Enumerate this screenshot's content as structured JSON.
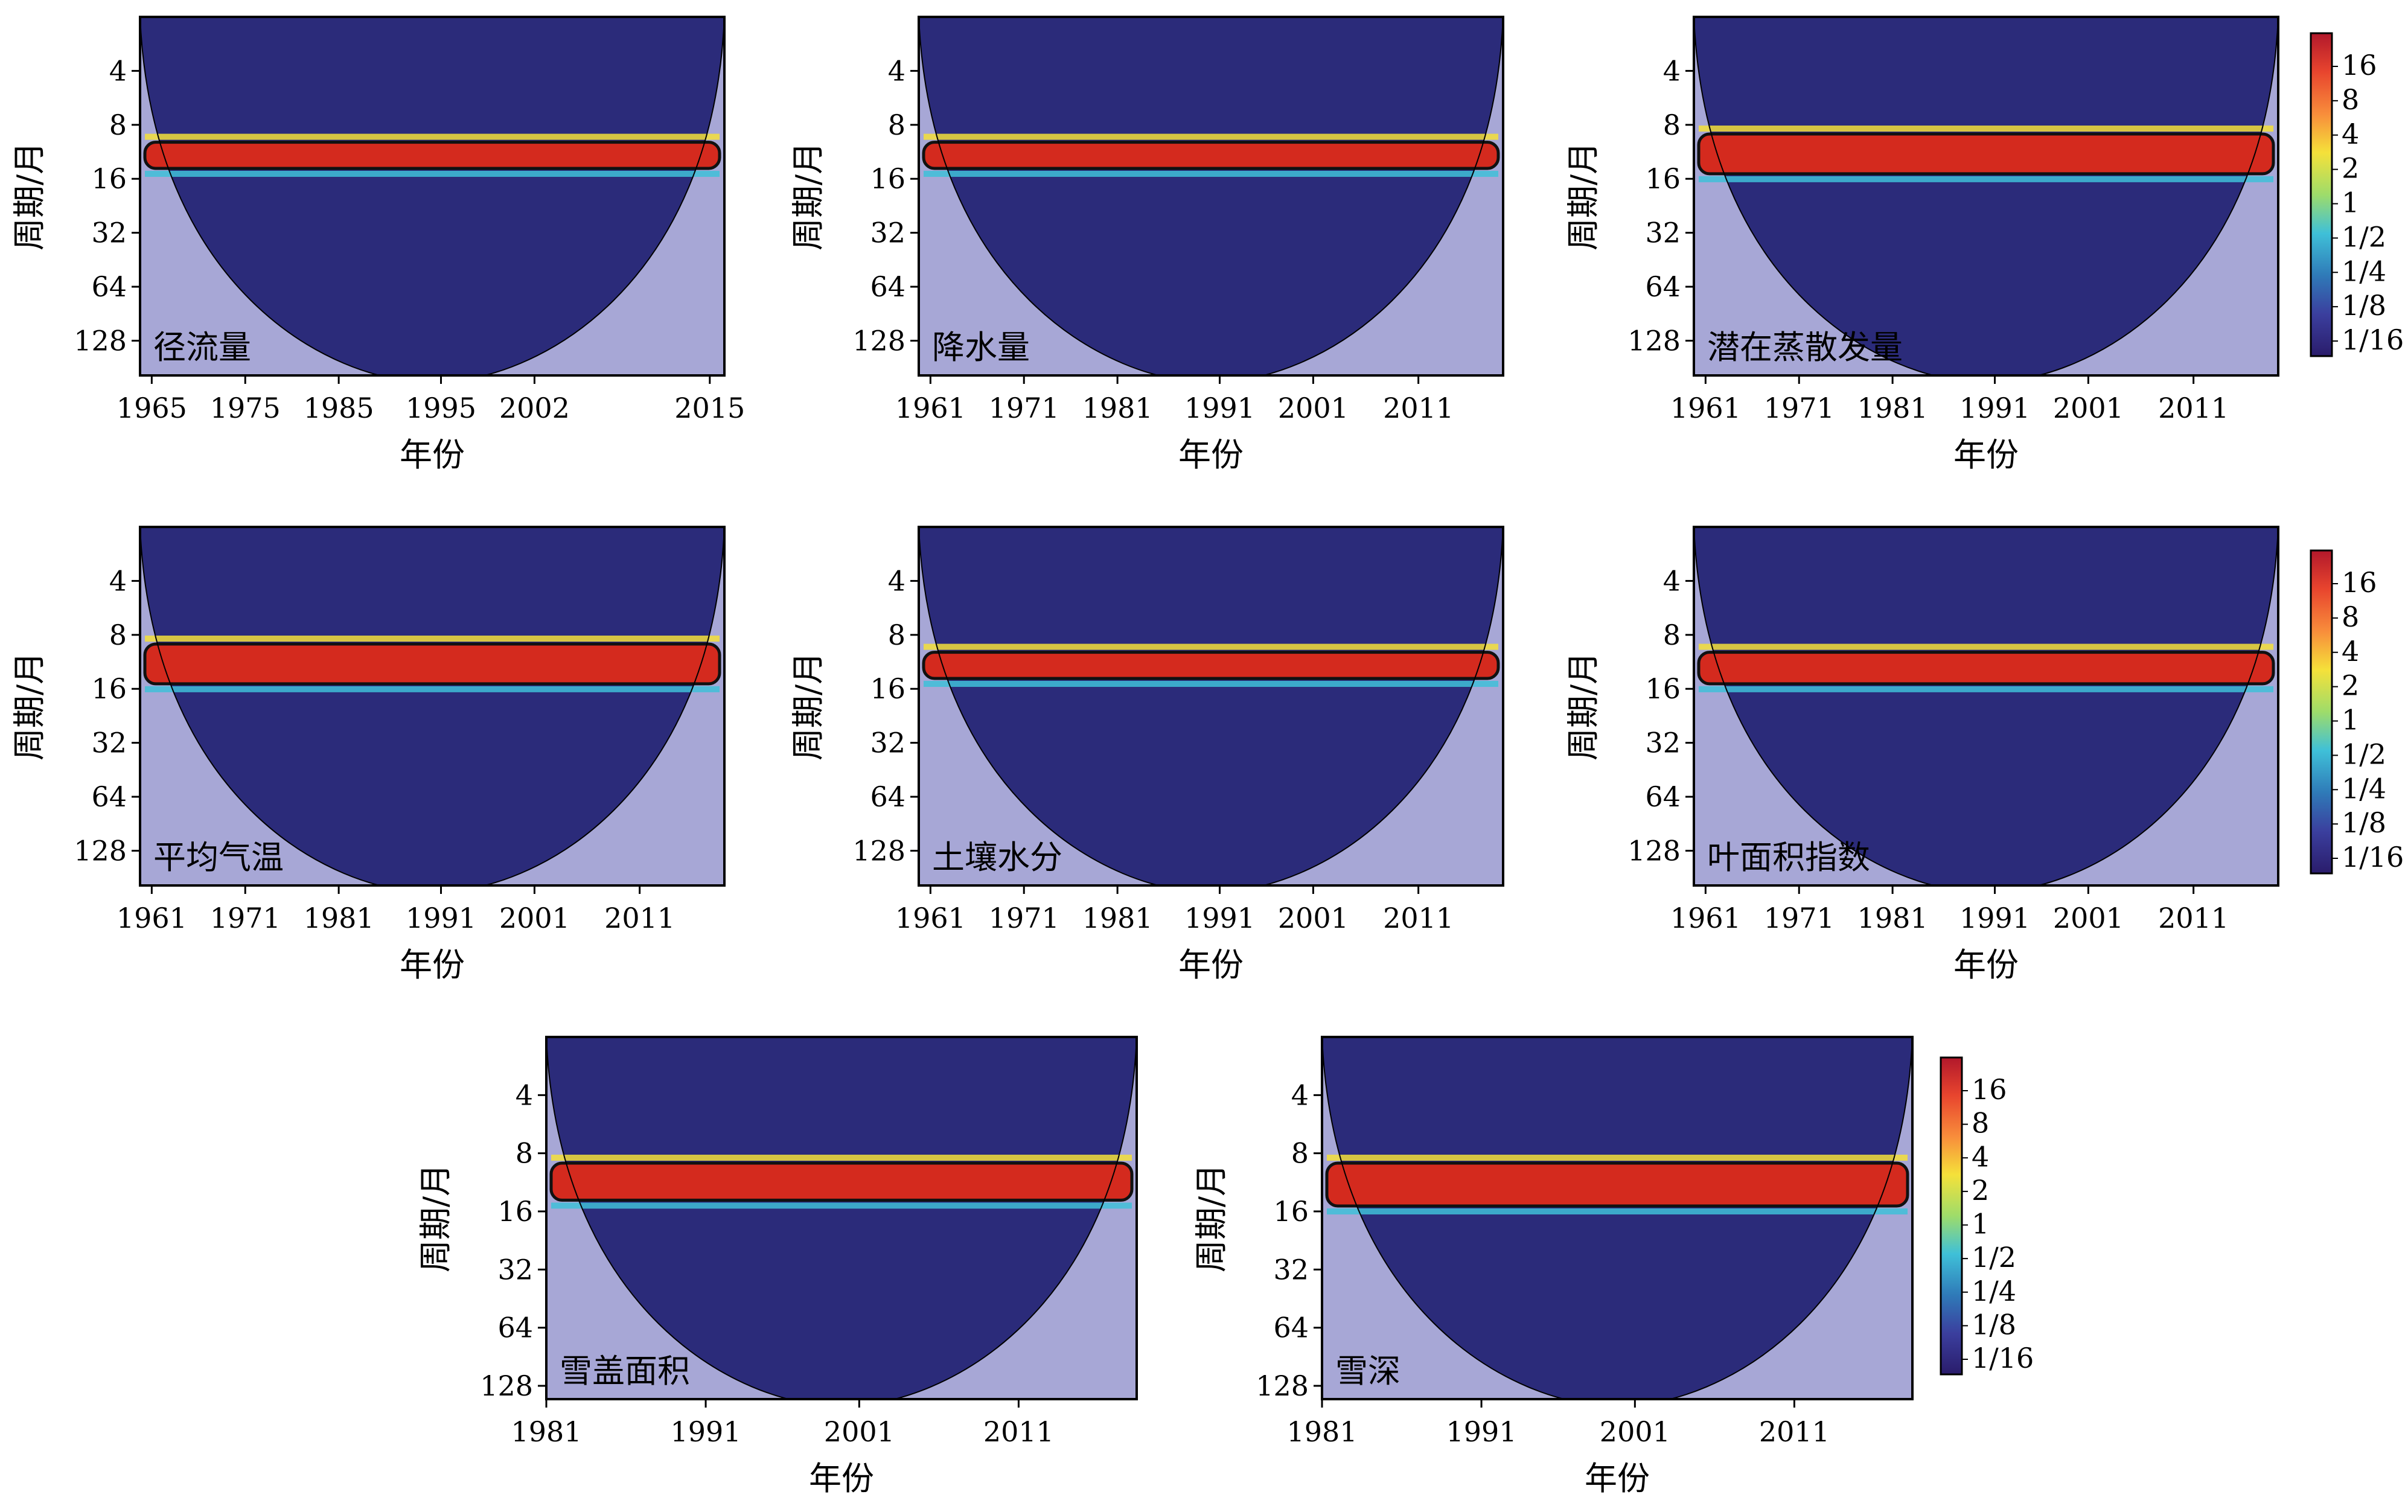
{
  "chart_data": [
    {
      "type": "heatmap",
      "panel": "径流量",
      "xlabel": "年份",
      "ylabel": "周期/月",
      "xticks": [
        "1965",
        "1975",
        "1985",
        "1995",
        "2002",
        "2015"
      ],
      "yticks": [
        "4",
        "8",
        "16",
        "32",
        "64",
        "128"
      ],
      "xlim": [
        1965,
        2016
      ],
      "period_range_months": [
        2,
        200
      ],
      "significant_period_band_months": [
        10,
        14
      ],
      "colorbar_ref": 0
    },
    {
      "type": "heatmap",
      "panel": "降水量",
      "xlabel": "年份",
      "ylabel": "周期/月",
      "xticks": [
        "1961",
        "1971",
        "1981",
        "1991",
        "2001",
        "2011"
      ],
      "yticks": [
        "4",
        "8",
        "16",
        "32",
        "64",
        "128"
      ],
      "xlim": [
        1961,
        2018
      ],
      "period_range_months": [
        2,
        200
      ],
      "significant_period_band_months": [
        10,
        14
      ],
      "colorbar_ref": 0
    },
    {
      "type": "heatmap",
      "panel": "潜在蒸散发量",
      "xlabel": "年份",
      "ylabel": "周期/月",
      "xticks": [
        "1961",
        "1971",
        "1981",
        "1991",
        "2001",
        "2011"
      ],
      "yticks": [
        "4",
        "8",
        "16",
        "32",
        "64",
        "128"
      ],
      "xlim": [
        1961,
        2018
      ],
      "period_range_months": [
        2,
        200
      ],
      "significant_period_band_months": [
        9,
        15
      ],
      "colorbar_ref": 0
    },
    {
      "type": "heatmap",
      "panel": "平均气温",
      "xlabel": "年份",
      "ylabel": "周期/月",
      "xticks": [
        "1961",
        "1971",
        "1981",
        "1991",
        "2001",
        "2011"
      ],
      "yticks": [
        "4",
        "8",
        "16",
        "32",
        "64",
        "128"
      ],
      "xlim": [
        1961,
        2018
      ],
      "period_range_months": [
        2,
        200
      ],
      "significant_period_band_months": [
        9,
        15
      ],
      "colorbar_ref": 1
    },
    {
      "type": "heatmap",
      "panel": "土壤水分",
      "xlabel": "年份",
      "ylabel": "周期/月",
      "xticks": [
        "1961",
        "1971",
        "1981",
        "1991",
        "2001",
        "2011"
      ],
      "yticks": [
        "4",
        "8",
        "16",
        "32",
        "64",
        "128"
      ],
      "xlim": [
        1961,
        2018
      ],
      "period_range_months": [
        2,
        200
      ],
      "significant_period_band_months": [
        10,
        14
      ],
      "colorbar_ref": 1
    },
    {
      "type": "heatmap",
      "panel": "叶面积指数",
      "xlabel": "年份",
      "ylabel": "周期/月",
      "xticks": [
        "1961",
        "1971",
        "1981",
        "1991",
        "2001",
        "2011"
      ],
      "yticks": [
        "4",
        "8",
        "16",
        "32",
        "64",
        "128"
      ],
      "xlim": [
        1961,
        2018
      ],
      "period_range_months": [
        2,
        200
      ],
      "significant_period_band_months": [
        10,
        15
      ],
      "colorbar_ref": 1
    },
    {
      "type": "heatmap",
      "panel": "雪盖面积",
      "xlabel": "年份",
      "ylabel": "周期/月",
      "xticks": [
        "1981",
        "1991",
        "2001",
        "2011"
      ],
      "yticks": [
        "4",
        "8",
        "16",
        "32",
        "64",
        "128"
      ],
      "xlim": [
        1981,
        2018
      ],
      "period_range_months": [
        2,
        150
      ],
      "significant_period_band_months": [
        9,
        14
      ],
      "colorbar_ref": 2
    },
    {
      "type": "heatmap",
      "panel": "雪深",
      "xlabel": "年份",
      "ylabel": "周期/月",
      "xticks": [
        "1981",
        "1991",
        "2001",
        "2011"
      ],
      "yticks": [
        "4",
        "8",
        "16",
        "32",
        "64",
        "128"
      ],
      "xlim": [
        1981,
        2018
      ],
      "period_range_months": [
        2,
        150
      ],
      "significant_period_band_months": [
        9,
        15
      ],
      "colorbar_ref": 2
    }
  ],
  "colorbar": {
    "tick_labels": [
      "16",
      "8",
      "4",
      "2",
      "1",
      "1/2",
      "1/4",
      "1/8",
      "1/16"
    ],
    "colors": [
      "#b2182b",
      "#e8452e",
      "#f88d3b",
      "#f5e13a",
      "#9edc6a",
      "#3fc0d8",
      "#2f7ab8",
      "#3b3f9e",
      "#2a1c6b"
    ]
  },
  "colors": {
    "background_power": "#2b2b7a",
    "band_power": "#d42a1e",
    "outside_coi": "#a7a7d6",
    "contour": "#111111"
  }
}
